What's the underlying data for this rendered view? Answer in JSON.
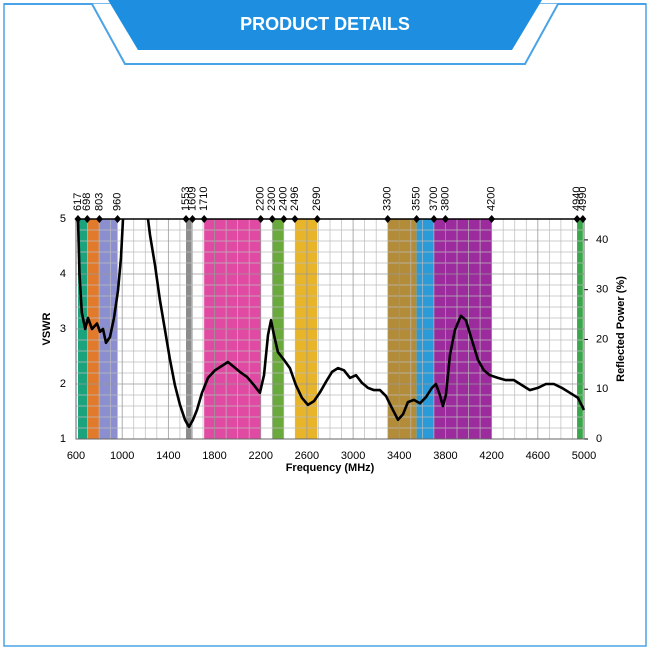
{
  "header": {
    "title": "PRODUCT DETAILS"
  },
  "chart_data": {
    "type": "line",
    "xlabel": "Frequency (MHz)",
    "ylabel": "VSWR",
    "y2label": "Reflected Power (%)",
    "xlim": [
      600,
      5000
    ],
    "xticks": [
      600,
      1000,
      1400,
      1800,
      2200,
      2600,
      3000,
      3400,
      3800,
      4200,
      4600,
      5000
    ],
    "ylim": [
      1,
      5
    ],
    "yticks": [
      1,
      2,
      3,
      4,
      5
    ],
    "y2lim": [
      0,
      44.2
    ],
    "y2ticks": [
      0,
      10,
      20,
      30,
      40
    ],
    "x2ticks": [
      617,
      698,
      803,
      960,
      1553,
      1609,
      1710,
      2200,
      2300,
      2400,
      2496,
      2690,
      3300,
      3550,
      3700,
      3800,
      4200,
      4940,
      4990
    ],
    "grid": true,
    "bands": [
      {
        "x": [
          617,
          698
        ],
        "color": "#1ba37d"
      },
      {
        "x": [
          698,
          803
        ],
        "color": "#e27a2c"
      },
      {
        "x": [
          803,
          960
        ],
        "color": "#8b8fd0"
      },
      {
        "x": [
          1553,
          1609
        ],
        "color": "#8c8c8c"
      },
      {
        "x": [
          1710,
          2200
        ],
        "color": "#e14aa3"
      },
      {
        "x": [
          2300,
          2400
        ],
        "color": "#6aaa3c"
      },
      {
        "x": [
          2496,
          2690
        ],
        "color": "#e8b52a"
      },
      {
        "x": [
          3300,
          3550
        ],
        "color": "#b38c3a"
      },
      {
        "x": [
          3550,
          3700
        ],
        "color": "#2a9ad8"
      },
      {
        "x": [
          3700,
          4200
        ],
        "color": "#9c2c9e"
      },
      {
        "x": [
          4940,
          4990
        ],
        "color": "#3aa84a"
      }
    ],
    "color": "#000000",
    "x": [
      617,
      630,
      650,
      680,
      704,
      739,
      782,
      808,
      834,
      860,
      894,
      929,
      964,
      990,
      1007,
      1100,
      1224,
      1241,
      1284,
      1327,
      1371,
      1414,
      1457,
      1501,
      1544,
      1579,
      1613,
      1648,
      1691,
      1743,
      1804,
      1864,
      1916,
      1968,
      2020,
      2081,
      2141,
      2193,
      2228,
      2263,
      2289,
      2315,
      2349,
      2401,
      2453,
      2505,
      2557,
      2609,
      2661,
      2713,
      2765,
      2817,
      2869,
      2921,
      2973,
      3025,
      3077,
      3129,
      3181,
      3233,
      3285,
      3337,
      3389,
      3432,
      3475,
      3527,
      3579,
      3631,
      3683,
      3717,
      3752,
      3778,
      3804,
      3839,
      3882,
      3934,
      3977,
      4029,
      4081,
      4133,
      4185,
      4254,
      4323,
      4393,
      4462,
      4531,
      4600,
      4670,
      4739,
      4809,
      4878,
      4947,
      5000
    ],
    "values": [
      5,
      4,
      3.3,
      3.0,
      3.2,
      3.0,
      3.1,
      2.95,
      3.0,
      2.75,
      2.85,
      3.2,
      3.7,
      4.3,
      5,
      null,
      5,
      4.71,
      4.16,
      3.53,
      2.98,
      2.44,
      1.98,
      1.62,
      1.35,
      1.22,
      1.35,
      1.53,
      1.84,
      2.11,
      2.25,
      2.33,
      2.4,
      2.31,
      2.22,
      2.13,
      1.98,
      1.84,
      2.16,
      2.89,
      3.16,
      2.89,
      2.58,
      2.44,
      2.29,
      1.98,
      1.75,
      1.62,
      1.69,
      1.85,
      2.04,
      2.22,
      2.29,
      2.25,
      2.11,
      2.16,
      2.02,
      1.93,
      1.89,
      1.89,
      1.78,
      1.56,
      1.35,
      1.45,
      1.67,
      1.71,
      1.65,
      1.76,
      1.93,
      2.0,
      1.8,
      1.6,
      1.8,
      2.53,
      2.98,
      3.24,
      3.16,
      2.8,
      2.44,
      2.25,
      2.16,
      2.11,
      2.07,
      2.07,
      1.98,
      1.89,
      1.93,
      2.0,
      2.0,
      1.93,
      1.84,
      1.75,
      1.53
    ]
  }
}
